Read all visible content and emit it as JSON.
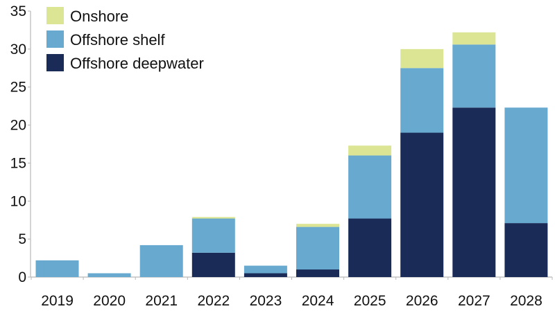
{
  "chart_data": {
    "type": "bar",
    "stacked": true,
    "title": "",
    "xlabel": "",
    "ylabel": "",
    "ylim": [
      0,
      35
    ],
    "yticks": [
      0,
      5,
      10,
      15,
      20,
      25,
      30,
      35
    ],
    "grid": false,
    "legend_position": "top-left",
    "categories": [
      "2019",
      "2020",
      "2021",
      "2022",
      "2023",
      "2024",
      "2025",
      "2026",
      "2027",
      "2028"
    ],
    "series": [
      {
        "name": "Offshore deepwater",
        "color": "#1b2b58",
        "values": [
          0,
          0,
          0,
          3.2,
          0.5,
          1.0,
          7.7,
          19.0,
          22.3,
          7.1
        ]
      },
      {
        "name": "Offshore shelf",
        "color": "#67a9cf",
        "values": [
          2.2,
          0.5,
          4.2,
          4.5,
          1.0,
          5.6,
          8.3,
          8.5,
          8.3,
          15.2
        ]
      },
      {
        "name": "Onshore",
        "color": "#dce593",
        "values": [
          0,
          0,
          0,
          0.2,
          0,
          0.4,
          1.3,
          2.5,
          1.6,
          0
        ]
      }
    ],
    "legend_order": [
      "Onshore",
      "Offshore shelf",
      "Offshore deepwater"
    ]
  }
}
